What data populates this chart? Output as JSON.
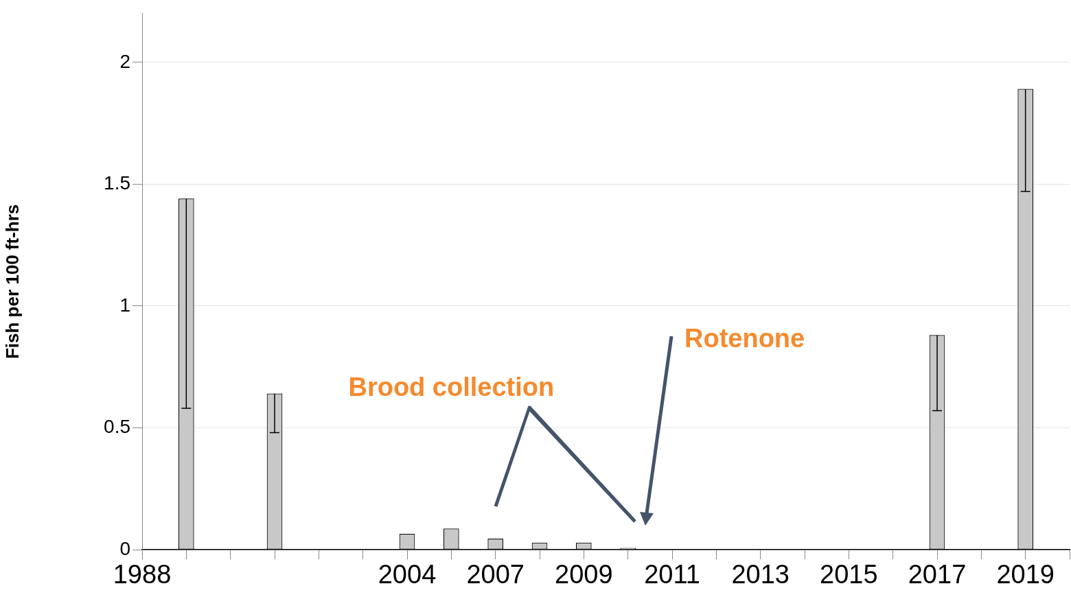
{
  "chart_data": {
    "type": "bar",
    "ylabel": "Fish per 100 ft-hrs",
    "categories": [
      "1988",
      null,
      null,
      null,
      null,
      null,
      "2004",
      null,
      "2007",
      null,
      "2009",
      null,
      "2011",
      null,
      "2013",
      null,
      "2015",
      null,
      "2017",
      null,
      "2019",
      null
    ],
    "values": [
      null,
      1.44,
      null,
      0.64,
      null,
      null,
      0.064,
      0.086,
      0.044,
      0.028,
      0.028,
      0.006,
      null,
      null,
      null,
      null,
      null,
      null,
      0.88,
      null,
      1.89,
      null
    ],
    "errors": [
      null,
      [
        0.58,
        1.44
      ],
      null,
      [
        0.48,
        0.64
      ],
      null,
      null,
      null,
      null,
      null,
      null,
      null,
      null,
      null,
      null,
      null,
      null,
      null,
      null,
      [
        0.57,
        0.88
      ],
      null,
      [
        1.47,
        1.89
      ],
      null
    ],
    "color": "#c8c8c8",
    "ylim": [
      0,
      2.2
    ],
    "yticks": [
      0,
      0.5,
      1,
      1.5,
      2
    ],
    "grid": "y",
    "annotations": [
      "Brood collection",
      "Rotenone"
    ]
  }
}
